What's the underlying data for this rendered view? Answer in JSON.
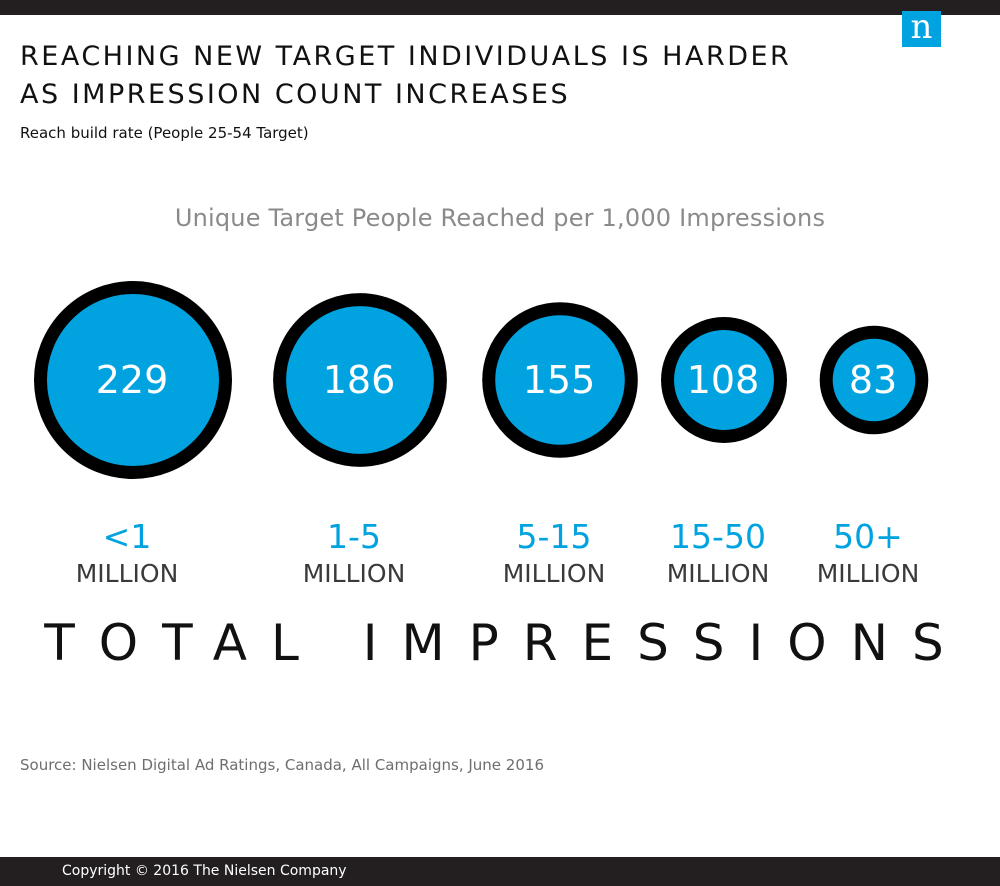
{
  "header": {
    "logo_letter": "n",
    "title_lines": [
      "REACHING NEW TARGET INDIVIDUALS IS HARDER",
      "AS IMPRESSION COUNT INCREASES"
    ],
    "subtitle": "Reach build rate (People 25-54 Target)"
  },
  "chart_data": {
    "type": "bubble",
    "value_label": "Unique Target People Reached per 1,000 Impressions",
    "xlabel": "TOTAL IMPRESSIONS",
    "categories": [
      {
        "range": "<1",
        "unit": "MILLION"
      },
      {
        "range": "1-5",
        "unit": "MILLION"
      },
      {
        "range": "5-15",
        "unit": "MILLION"
      },
      {
        "range": "15-50",
        "unit": "MILLION"
      },
      {
        "range": "50+",
        "unit": "MILLION"
      }
    ],
    "values": [
      229,
      186,
      155,
      108,
      83
    ],
    "colors": {
      "bubble_fill": "#00a3e0",
      "bubble_stroke": "#000000",
      "category_text": "#00a3e0"
    }
  },
  "footer": {
    "source": "Source: Nielsen Digital Ad Ratings, Canada, All Campaigns, June 2016",
    "copyright": "Copyright © 2016 The Nielsen Company"
  }
}
